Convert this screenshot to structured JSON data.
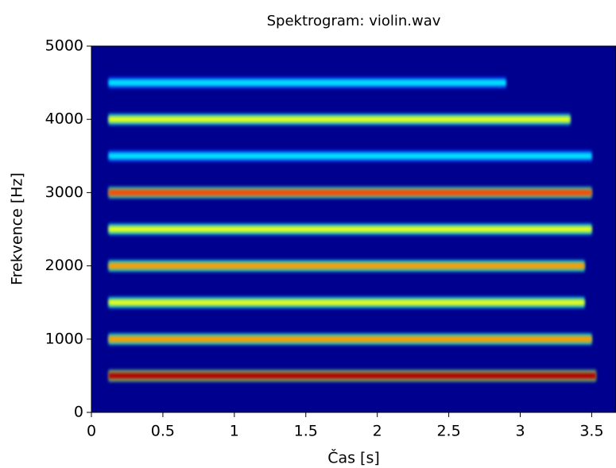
{
  "chart_data": {
    "type": "spectrogram",
    "title": "Spektrogram: violin.wav",
    "xlabel": "Čas [s]",
    "ylabel": "Frekvence [Hz]",
    "xlim": [
      0,
      3.67
    ],
    "ylim": [
      0,
      5000
    ],
    "xticks": [
      0,
      0.5,
      1,
      1.5,
      2,
      2.5,
      3,
      3.5
    ],
    "yticks": [
      0,
      1000,
      2000,
      3000,
      4000,
      5000
    ],
    "colormap": "jet",
    "background": "#00008f",
    "bands": [
      {
        "frequency": 500,
        "start": 0.12,
        "end": 3.53,
        "intensity": 0.95
      },
      {
        "frequency": 1000,
        "start": 0.12,
        "end": 3.5,
        "intensity": 0.72
      },
      {
        "frequency": 1500,
        "start": 0.12,
        "end": 3.45,
        "intensity": 0.6
      },
      {
        "frequency": 2000,
        "start": 0.12,
        "end": 3.45,
        "intensity": 0.72
      },
      {
        "frequency": 2500,
        "start": 0.12,
        "end": 3.5,
        "intensity": 0.6
      },
      {
        "frequency": 3000,
        "start": 0.12,
        "end": 3.5,
        "intensity": 0.8
      },
      {
        "frequency": 3500,
        "start": 0.12,
        "end": 3.5,
        "intensity": 0.35
      },
      {
        "frequency": 4000,
        "start": 0.12,
        "end": 3.35,
        "intensity": 0.6
      },
      {
        "frequency": 4500,
        "start": 0.12,
        "end": 2.9,
        "intensity": 0.35
      }
    ]
  }
}
